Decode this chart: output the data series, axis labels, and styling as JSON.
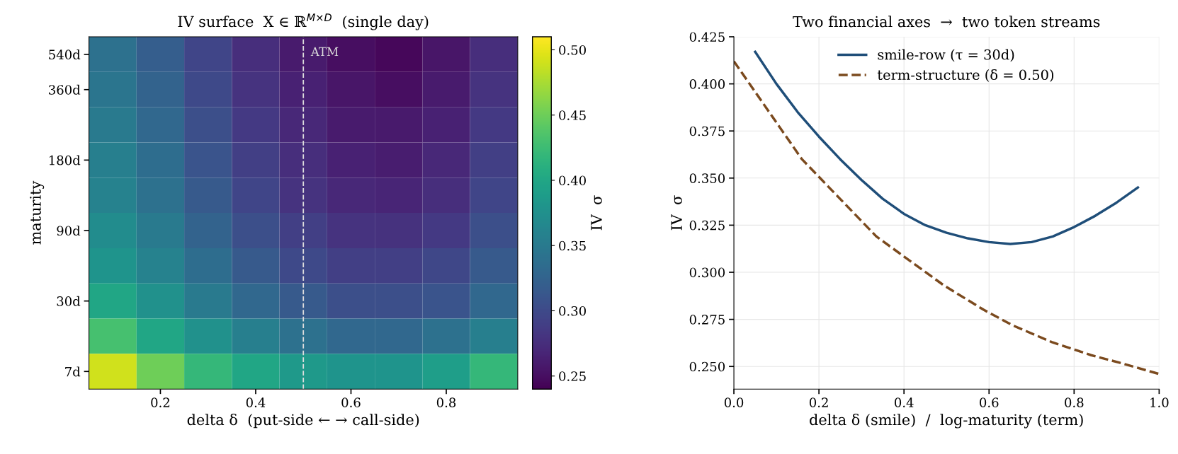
{
  "chart_data": [
    {
      "type": "heatmap",
      "title": "IV surface  X ∈ ℝ$^{M×D}$  (single day)",
      "xlabel": "delta δ  (put-side ← → call-side)",
      "ylabel": "maturity",
      "clabel": "IV  σ",
      "x": [
        0.1,
        0.2,
        0.3,
        0.4,
        0.5,
        0.6,
        0.7,
        0.8,
        0.9
      ],
      "xlim": [
        0.05,
        0.95
      ],
      "xticks": [
        0.2,
        0.4,
        0.6,
        0.8
      ],
      "y_categories": [
        "540d",
        "360d",
        null,
        "180d",
        null,
        "90d",
        null,
        "30d",
        null,
        "7d"
      ],
      "cells": [
        [
          0.34,
          0.32,
          0.295,
          0.275,
          0.26,
          0.25,
          0.245,
          0.255,
          0.275
        ],
        [
          0.345,
          0.325,
          0.3,
          0.28,
          0.265,
          0.255,
          0.25,
          0.26,
          0.28
        ],
        [
          0.35,
          0.33,
          0.305,
          0.285,
          0.27,
          0.26,
          0.258,
          0.265,
          0.285
        ],
        [
          0.355,
          0.335,
          0.31,
          0.29,
          0.275,
          0.265,
          0.262,
          0.27,
          0.29
        ],
        [
          0.36,
          0.34,
          0.315,
          0.295,
          0.28,
          0.27,
          0.268,
          0.275,
          0.295
        ],
        [
          0.37,
          0.35,
          0.325,
          0.305,
          0.29,
          0.28,
          0.278,
          0.285,
          0.305
        ],
        [
          0.38,
          0.36,
          0.335,
          0.315,
          0.3,
          0.29,
          0.29,
          0.297,
          0.315
        ],
        [
          0.4,
          0.375,
          0.35,
          0.33,
          0.315,
          0.305,
          0.305,
          0.31,
          0.33
        ],
        [
          0.43,
          0.4,
          0.375,
          0.355,
          0.34,
          0.33,
          0.33,
          0.34,
          0.355
        ],
        [
          0.49,
          0.45,
          0.42,
          0.4,
          0.385,
          0.38,
          0.38,
          0.39,
          0.42
        ]
      ],
      "clim": [
        0.24,
        0.51
      ],
      "cticks": [
        0.25,
        {
          "value": 0.3,
          "label": "0.30"
        },
        0.35,
        {
          "value": 0.4,
          "label": "0.40"
        },
        0.45,
        {
          "value": 0.5,
          "label": "0.50"
        }
      ],
      "ref_lines": [
        {
          "axis": "x",
          "value": 0.5,
          "label": "ATM",
          "color": "#dddddd",
          "line_style": "dashed"
        }
      ]
    },
    {
      "type": "line",
      "title": "Two financial axes  →  two token streams",
      "xlabel": "delta δ (smile)  /  log-maturity (term)",
      "ylabel": "IV  σ",
      "xlim": [
        0.0,
        1.0
      ],
      "xticks": [
        {
          "value": 0,
          "label": "0.0"
        },
        0.2,
        0.4,
        0.6,
        0.8,
        {
          "value": 1,
          "label": "1.0"
        }
      ],
      "ylim": [
        0.238,
        0.425
      ],
      "yticks": [
        {
          "value": 0.25,
          "label": "0.250"
        },
        0.275,
        {
          "value": 0.3,
          "label": "0.300"
        },
        0.325,
        {
          "value": 0.35,
          "label": "0.350"
        },
        0.375,
        {
          "value": 0.4,
          "label": "0.400"
        },
        0.425
      ],
      "grid": true,
      "legend": "top",
      "series": [
        {
          "name": "smile-row (τ = 30d)",
          "color": "#1f4e79",
          "line_style": "solid",
          "x": [
            0.05,
            0.1,
            0.15,
            0.2,
            0.25,
            0.3,
            0.35,
            0.4,
            0.45,
            0.5,
            0.55,
            0.6,
            0.65,
            0.7,
            0.75,
            0.8,
            0.85,
            0.9,
            0.95
          ],
          "values": [
            0.417,
            0.4,
            0.385,
            0.372,
            0.36,
            0.349,
            0.339,
            0.331,
            0.325,
            0.321,
            0.318,
            0.316,
            0.315,
            0.316,
            0.319,
            0.324,
            0.33,
            0.337,
            0.345
          ]
        },
        {
          "name": "term-structure (δ = 0.50)",
          "color": "#7b4a1e",
          "line_style": "dashed",
          "x": [
            0.0,
            0.16,
            0.335,
            0.494,
            0.588,
            0.654,
            0.747,
            0.84,
            0.907,
            1.0
          ],
          "values": [
            0.412,
            0.36,
            0.319,
            0.293,
            0.28,
            0.272,
            0.263,
            0.256,
            0.252,
            0.246
          ]
        }
      ]
    }
  ]
}
